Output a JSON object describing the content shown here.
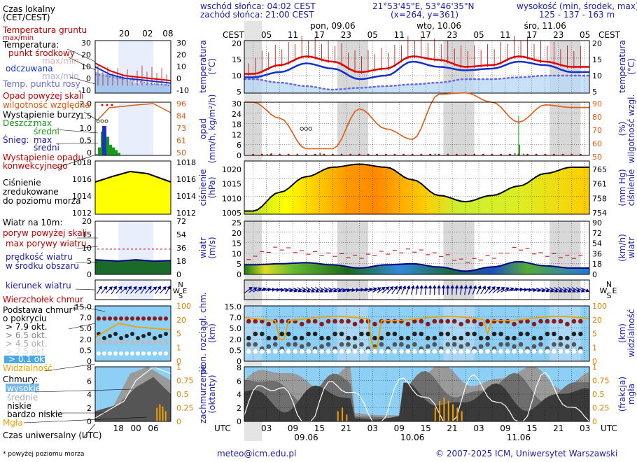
{
  "header": {
    "sunrise": "wschód słońca: 04:02 CEST",
    "sunset": "zachód słońca: 21:00 CEST",
    "coords": "21°53'45\"E, 53°46'35\"N",
    "grid": "(x=264, y=361)",
    "altitude_title": "wysokość (min, środek, max)",
    "altitude_values": "125 - 137 - 163 m"
  },
  "legend": {
    "local_time": "Czas lokalny",
    "local_time_zone": "(CET/CEST)",
    "local_hours": [
      "20",
      "02",
      "08"
    ],
    "soil_temp": "Temperatura gruntu",
    "soil_temp_sub": "max/min",
    "temperature": "Temperatura:",
    "mid_point": "punkt środkowy",
    "maxmin": "max/min",
    "felt": "odczuwana",
    "felt_maxmin": "max/min",
    "dew_point": "Temp. punktu rosy",
    "precip_over": "Opad powyżej skali",
    "rel_humidity": "wilgotność względna",
    "storm": "Wystąpienie burzy",
    "rain": "Deszcz:",
    "rain_max": "max",
    "rain_mean": "średni",
    "snow": "Śnieg:",
    "snow_max": "max",
    "snow_mean": "średni",
    "precip_occurrence": "Wystąpienie opadu",
    "convective": "konwekcyjnego",
    "pressure_1": "Ciśnienie",
    "pressure_2": "zredukowane",
    "pressure_3": "do poziomu morza",
    "wind_at": "Wiatr na 10m:",
    "gust_over": "poryw powyżej skali",
    "max_gust": "max porywy wiatru",
    "wind_speed": "prędkość wiatru",
    "wind_area": "w środku obszaru",
    "wind_dir": "kierunek wiatru",
    "cloud_top": "Wierzchołek chmur",
    "cloud_base": "Podstawa chmur*",
    "cloud_base_2": "o pokryciu",
    "okt_79": "> 7.9 okt.",
    "okt_65": "> 6.5 okt.",
    "okt_45": "> 4.5 okt.",
    "okt_25": "> 2.5 okt.",
    "okt_01": "> 0.1 okt.",
    "visibility": "Widzialność",
    "clouds": "Chmury:",
    "cl_high": "wysokie",
    "cl_mid": "średnie",
    "cl_low": "niskie",
    "cl_vlow": "bardzo niskie",
    "fog": "Mgła",
    "utc_time": "Czas uniwersalny (UTC)",
    "utc_hours": [
      "18",
      "00",
      "06"
    ],
    "footnote": "* powyżej poziomu morza"
  },
  "legend_axes": {
    "temp": [
      "30",
      "20",
      "10",
      "0",
      "-10"
    ],
    "precip": [
      "2.0",
      "1.5",
      "1.0",
      "0.5",
      "0"
    ],
    "rh": [
      "96",
      "84",
      "73",
      "61",
      "50"
    ],
    "press": [
      "1018",
      "1016",
      "1014",
      "1012"
    ],
    "wind": [
      "20",
      "15",
      "10",
      "5",
      "0"
    ],
    "wind_kmh": [
      "72",
      "54",
      "36",
      "18",
      "0"
    ],
    "cloud_km": [
      "15.0",
      "7.0",
      "5.0",
      "2.0",
      "0.5",
      "0"
    ],
    "vis": [
      "100",
      "20",
      "5",
      "1",
      "0"
    ],
    "oct": [
      "8",
      "6",
      "4",
      "2",
      "0"
    ],
    "frac": [
      "1",
      "0.75",
      "0.5",
      "0.25",
      "0"
    ]
  },
  "main": {
    "cest_label": "CEST",
    "utc_label": "UTC",
    "top_hours": [
      "05",
      "11",
      "17",
      "23",
      "05",
      "11",
      "17",
      "23",
      "05",
      "11",
      "17",
      "23",
      "05"
    ],
    "days": [
      "pon, 09.06",
      "wto, 10.06",
      "śro, 11.06"
    ],
    "bottom_hours": [
      "03",
      "09",
      "15",
      "21",
      "03",
      "09",
      "15",
      "21",
      "03",
      "09",
      "15",
      "21",
      "03"
    ],
    "bottom_dates": [
      "09.06",
      "10.06",
      "11.06"
    ]
  },
  "axis_labels": {
    "temp_l": "temperatura",
    "temp_l_unit": "(°C)",
    "temp_r": "temperatura",
    "temp_r_unit": "(°C)",
    "precip_l": "opad",
    "precip_l_unit": "(mm/h, kg/m²/h)",
    "precip_r": "wilgotność wzgl.",
    "precip_r_unit": "(%)",
    "press_l": "ciśnienie",
    "press_l_unit": "(hPa)",
    "press_r": "ciśnienie",
    "press_r_unit": "(mm Hg)",
    "wind_l": "wiatr",
    "wind_l_unit": "(m/s)",
    "wind_r": "wiatr",
    "wind_r_unit": "(km/h)",
    "cloud_l": "pion. rozciągł. chm.",
    "cloud_l_unit": "(km)",
    "cloud_r": "widzialność",
    "cloud_r_unit": "(km)",
    "cover_l": "zachmurzenie",
    "cover_l_unit": "(oktanty)",
    "cover_r": "mgła",
    "cover_r_unit": "(frakcja)"
  },
  "main_axes": {
    "temp": [
      "20",
      "15",
      "10",
      "5"
    ],
    "precip": [
      "30",
      "24",
      "18",
      "12",
      "6",
      "0"
    ],
    "rh": [
      "90",
      "80",
      "70",
      "60",
      "50"
    ],
    "press": [
      "1020",
      "1015",
      "1010",
      "1005"
    ],
    "press_mmhg": [
      "765",
      "761",
      "758",
      "754"
    ],
    "wind": [
      "25",
      "20",
      "15",
      "10",
      "5",
      "0"
    ],
    "wind_kmh": [
      "90",
      "72",
      "54",
      "36",
      "18",
      "0"
    ],
    "cloud_km": [
      "15.0",
      "7.0",
      "5.0",
      "2.0",
      "0.5",
      "0"
    ],
    "vis": [
      "100",
      "20",
      "5",
      "1",
      "0"
    ],
    "oct": [
      "8",
      "6",
      "4",
      "2",
      "0"
    ],
    "frac": [
      "1",
      "0.75",
      "0.5",
      "0.25",
      "0"
    ]
  },
  "compass": {
    "n": "N",
    "s": "S",
    "w": "W",
    "e": "E"
  },
  "footer": {
    "email": "meteo@icm.edu.pl",
    "copyright": "© 2007-2025 ICM, Uniwersytet Warszawski"
  },
  "colors": {
    "temperature": "#e00000",
    "felt": "#1030d0",
    "dew_point": "#6a6ae0",
    "humidity": "#e05a10",
    "pressure_fill_low": "#ffff00",
    "pressure_fill_high": "#ff9900",
    "wind_fill": "#1a7a1a",
    "sky": "#8ecff5",
    "night": "#d8d8d8"
  },
  "chart_data": {
    "type": "line",
    "x_hours_utc": [
      0,
      6,
      12,
      18,
      24,
      30,
      36,
      42,
      48,
      54,
      60,
      66,
      72
    ],
    "series": [
      {
        "name": "temperatura",
        "values": [
          10.5,
          13,
          15.5,
          14,
          11,
          12,
          15.5,
          14.5,
          12.5,
          13,
          15.5,
          14,
          12.5
        ]
      },
      {
        "name": "odczuwana",
        "values": [
          9.5,
          11,
          13.5,
          12,
          9,
          10,
          14,
          12.5,
          11.5,
          12,
          14,
          13,
          11
        ]
      },
      {
        "name": "temp. punktu rosy",
        "values": [
          9,
          8,
          7,
          6,
          6.5,
          7,
          7.5,
          8,
          9,
          9,
          9.5,
          10,
          10
        ]
      },
      {
        "name": "wilgotność względna",
        "values": [
          90,
          78,
          55,
          55,
          85,
          70,
          62,
          96,
          97,
          90,
          75,
          88,
          86
        ]
      },
      {
        "name": "ciśnienie",
        "values": [
          1006,
          1012,
          1017,
          1020,
          1021,
          1020,
          1016,
          1011,
          1009,
          1011,
          1014,
          1018,
          1020
        ]
      },
      {
        "name": "prędkość wiatru",
        "values": [
          4.5,
          5,
          5.5,
          4.5,
          3,
          4.5,
          5,
          3.5,
          1.5,
          3.5,
          6,
          4,
          3
        ]
      },
      {
        "name": "max porywy wiatru",
        "values": [
          9,
          12,
          10,
          9,
          8,
          10,
          11,
          9,
          6,
          8,
          12,
          9,
          8
        ]
      }
    ],
    "xlabel": "UTC"
  }
}
